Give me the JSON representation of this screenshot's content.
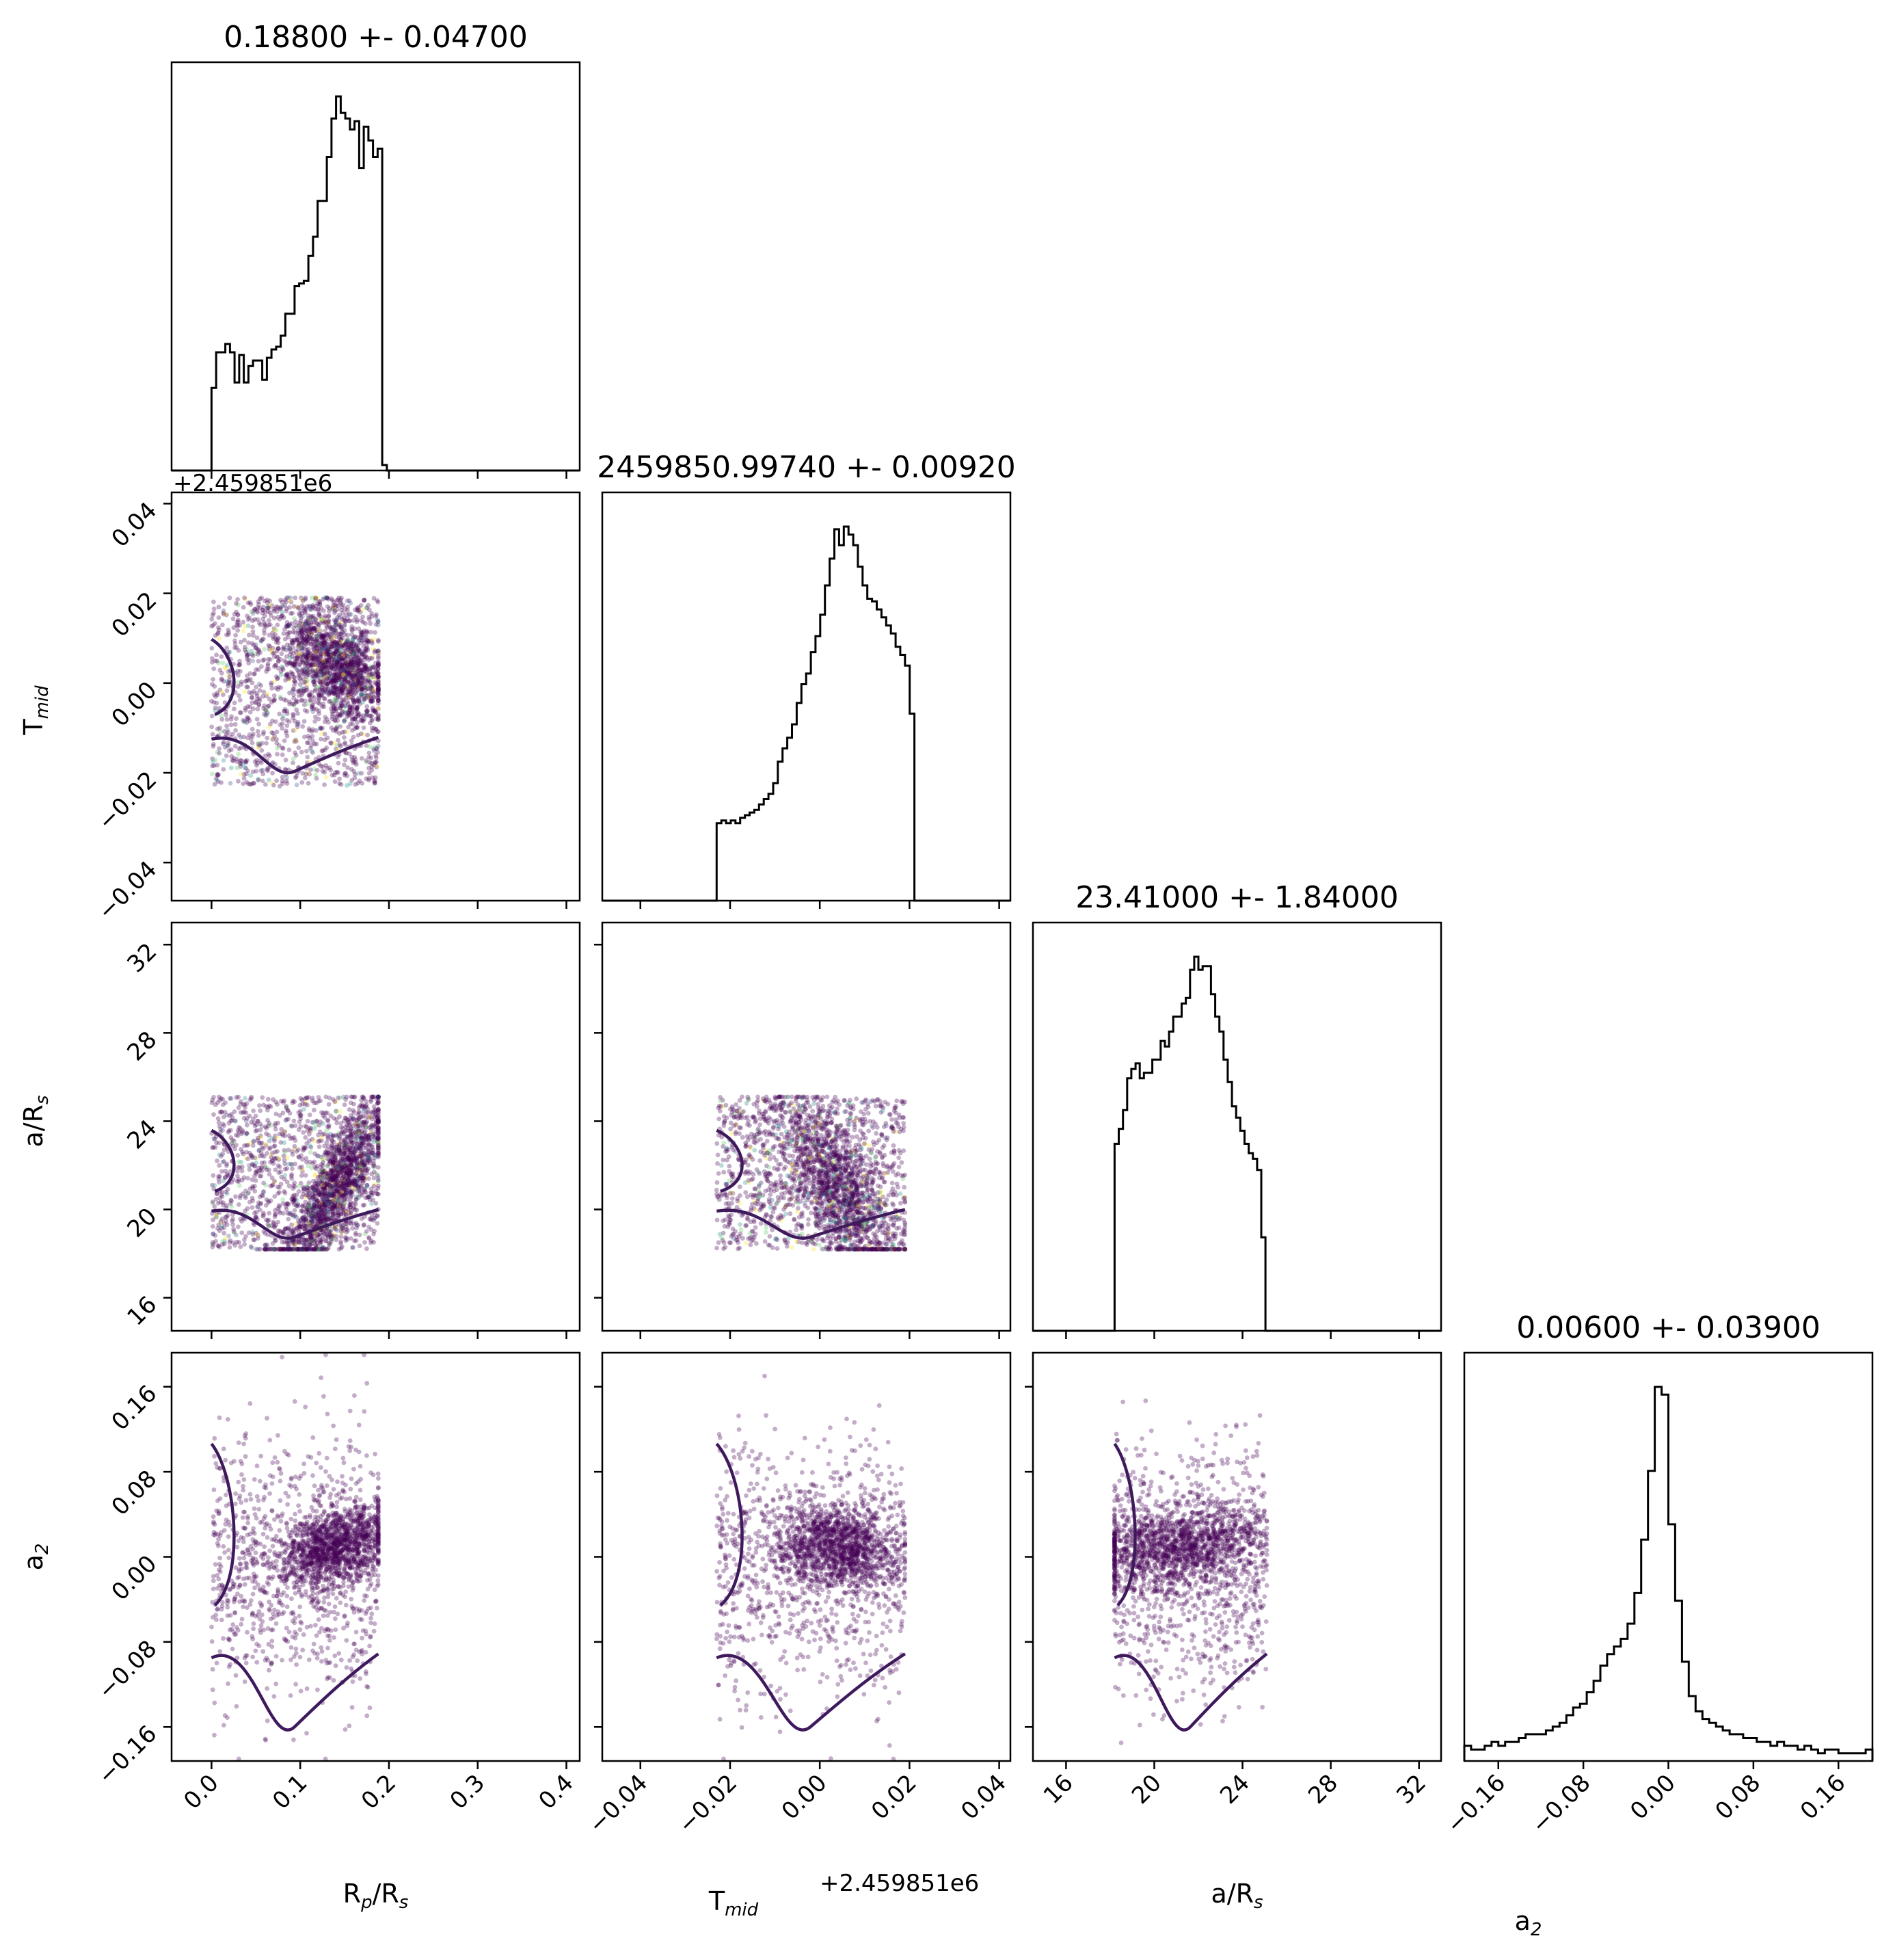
{
  "chart_data": {
    "type": "corner",
    "parameters": [
      {
        "key": "rp",
        "label_main": "R",
        "label_sub": "p",
        "label_suffix_main": "/R",
        "label_suffix_sub": "s",
        "title": "0.18800 +- 0.04700",
        "range": [
          -0.045,
          0.415
        ],
        "ticks": [
          0.0,
          0.1,
          0.2,
          0.3,
          0.4
        ],
        "tick_labels": [
          "0.0",
          "0.1",
          "0.2",
          "0.3",
          "0.4"
        ],
        "sample_range": [
          0.0,
          0.188
        ],
        "hist_edges_start": 0.0,
        "hist_bin_width": 0.0052,
        "hist_counts": [
          0.3,
          0.43,
          0.43,
          0.46,
          0.43,
          0.32,
          0.42,
          0.32,
          0.38,
          0.4,
          0.4,
          0.33,
          0.41,
          0.44,
          0.45,
          0.49,
          0.57,
          0.57,
          0.67,
          0.68,
          0.69,
          0.78,
          0.85,
          0.98,
          0.98,
          1.14,
          1.28,
          1.36,
          1.3,
          1.28,
          1.24,
          1.27,
          1.1,
          1.25,
          1.2,
          1.14,
          1.17,
          0.02
        ]
      },
      {
        "key": "tmid",
        "label_main": "T",
        "label_sub": "mid",
        "title": "2459850.99740 +- 0.00920",
        "offset_text": "+2.459851e6",
        "range": [
          -0.0485,
          0.0425
        ],
        "ticks": [
          -0.04,
          -0.02,
          0.0,
          0.02,
          0.04
        ],
        "tick_labels": [
          "−0.04",
          "−0.02",
          "0.00",
          "0.02",
          "0.04"
        ],
        "sample_range": [
          -0.023,
          0.019
        ],
        "hist_edges_start": -0.023,
        "hist_bin_width": 0.00105,
        "hist_counts": [
          0.29,
          0.3,
          0.29,
          0.3,
          0.29,
          0.31,
          0.32,
          0.33,
          0.34,
          0.36,
          0.38,
          0.4,
          0.44,
          0.52,
          0.57,
          0.61,
          0.66,
          0.74,
          0.81,
          0.85,
          0.93,
          0.99,
          1.07,
          1.18,
          1.28,
          1.39,
          1.33,
          1.4,
          1.37,
          1.33,
          1.25,
          1.18,
          1.13,
          1.12,
          1.09,
          1.06,
          1.03,
          1.0,
          0.95,
          0.92,
          0.88,
          0.7,
          0.0
        ]
      },
      {
        "key": "ars",
        "label_main": "a/R",
        "label_sub": "s",
        "title": "23.41000 +- 1.84000",
        "range": [
          14.5,
          33.0
        ],
        "ticks": [
          16,
          20,
          24,
          28,
          32
        ],
        "tick_labels": [
          "16",
          "20",
          "24",
          "28",
          "32"
        ],
        "sample_range": [
          18.2,
          25.1
        ],
        "hist_edges_start": 18.2,
        "hist_bin_width": 0.19,
        "hist_counts": [
          1.0,
          1.08,
          1.18,
          1.35,
          1.4,
          1.43,
          1.35,
          1.38,
          1.38,
          1.45,
          1.45,
          1.55,
          1.52,
          1.6,
          1.68,
          1.68,
          1.75,
          1.78,
          1.93,
          2.0,
          1.93,
          1.95,
          1.95,
          1.8,
          1.68,
          1.6,
          1.45,
          1.33,
          1.2,
          1.14,
          1.07,
          1.0,
          0.95,
          0.92,
          0.86,
          0.5,
          0.0
        ]
      },
      {
        "key": "a2",
        "label_main": "a",
        "label_sub": "2",
        "title": "0.00600 +- 0.03900",
        "range": [
          -0.192,
          0.192
        ],
        "ticks": [
          -0.16,
          -0.08,
          0.0,
          0.08,
          0.16
        ],
        "tick_labels": [
          "−0.16",
          "−0.08",
          "0.00",
          "0.08",
          "0.16"
        ],
        "hist_edges_start": -0.192,
        "hist_bin_width": 0.0064,
        "hist_counts": [
          0.04,
          0.03,
          0.03,
          0.04,
          0.05,
          0.04,
          0.05,
          0.05,
          0.06,
          0.07,
          0.07,
          0.07,
          0.08,
          0.09,
          0.1,
          0.12,
          0.14,
          0.15,
          0.18,
          0.21,
          0.25,
          0.28,
          0.3,
          0.32,
          0.36,
          0.44,
          0.58,
          0.76,
          0.98,
          0.96,
          0.62,
          0.42,
          0.26,
          0.17,
          0.13,
          0.11,
          0.1,
          0.09,
          0.08,
          0.07,
          0.07,
          0.06,
          0.06,
          0.05,
          0.05,
          0.04,
          0.05,
          0.04,
          0.04,
          0.03,
          0.04,
          0.03,
          0.02,
          0.03,
          0.03,
          0.02,
          0.02,
          0.02,
          0.02,
          0.03
        ]
      }
    ],
    "pairs": [
      {
        "row": 1,
        "col": 0,
        "n_points": 2600,
        "trend": "negative",
        "core_center": [
          0.13,
          0.003
        ],
        "contour": "level-curve"
      },
      {
        "row": 2,
        "col": 0,
        "n_points": 2600,
        "trend": "positive",
        "core_center": [
          0.14,
          21.5
        ],
        "contour": "level-curve"
      },
      {
        "row": 2,
        "col": 1,
        "n_points": 2600,
        "trend": "negative",
        "core_center": [
          0.0,
          21.7
        ],
        "contour": "level-curve"
      },
      {
        "row": 3,
        "col": 0,
        "n_points": 2200,
        "trend": "positive",
        "core_center": [
          0.13,
          0.01
        ],
        "contour": "level-curve"
      },
      {
        "row": 3,
        "col": 1,
        "n_points": 2200,
        "trend": "none",
        "core_center": [
          0.0,
          0.005
        ],
        "contour": "level-curve"
      },
      {
        "row": 3,
        "col": 2,
        "n_points": 2200,
        "trend": "slight-negative",
        "core_center": [
          20.5,
          0.005
        ],
        "contour": "level-curve"
      }
    ],
    "colors": {
      "hist": "#000000",
      "points": "#440154",
      "contour": "#3e1a5d",
      "scatter_palette": [
        "#440154",
        "#3b528b",
        "#21918c",
        "#5ec962",
        "#fde725"
      ]
    },
    "grid": false
  }
}
